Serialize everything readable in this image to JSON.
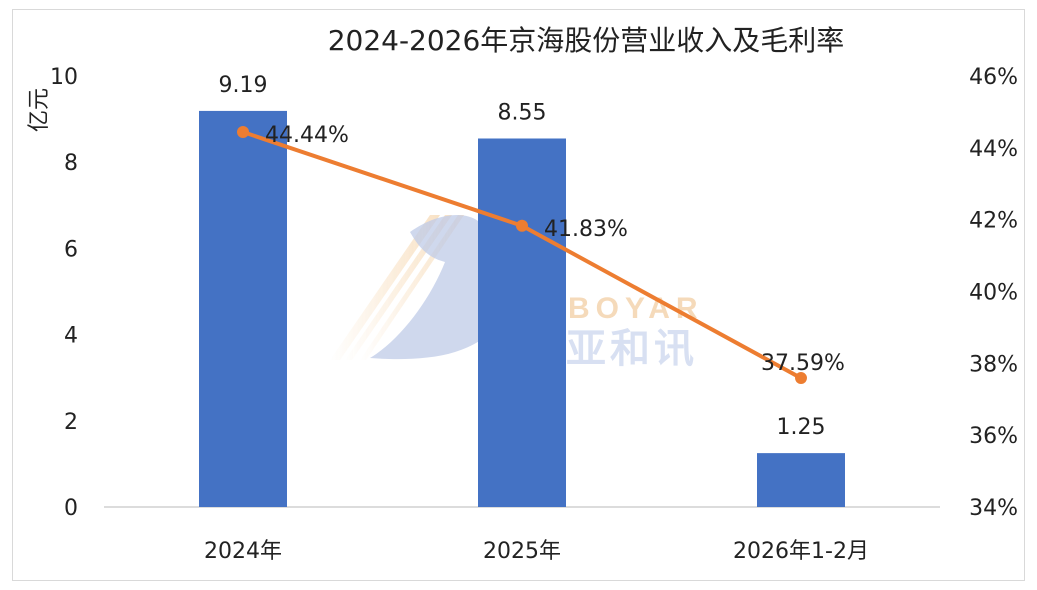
{
  "chart_data": {
    "type": "bar+line",
    "title": "2024-2026年京海股份营业收入及毛利率",
    "y_left_label": "亿元",
    "categories": [
      "2024年",
      "2025年",
      "2026年1-2月"
    ],
    "bars": {
      "values": [
        9.19,
        8.55,
        1.25
      ],
      "labels": [
        "9.19",
        "8.55",
        "1.25"
      ],
      "color": "#4472C4"
    },
    "line": {
      "values": [
        44.44,
        41.83,
        37.59
      ],
      "labels": [
        "44.44%",
        "41.83%",
        "37.59%"
      ],
      "color": "#ED7D31"
    },
    "y_left": {
      "min": 0,
      "max": 10,
      "ticks": [
        "0",
        "2",
        "4",
        "6",
        "8",
        "10"
      ]
    },
    "y_right": {
      "min": 34,
      "max": 46,
      "ticks": [
        "34%",
        "36%",
        "38%",
        "40%",
        "42%",
        "44%",
        "46%"
      ]
    },
    "grid": false,
    "legend": "none"
  },
  "watermark": {
    "text_en": "BOYAR",
    "text_cn": "亚和讯"
  }
}
